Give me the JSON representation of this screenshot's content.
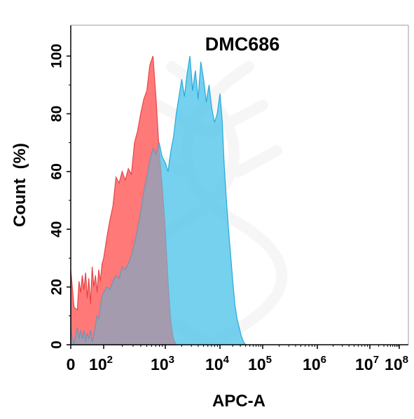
{
  "chart_data": {
    "type": "area",
    "title": "DMC686",
    "xlabel": "APC-A",
    "ylabel": "Count  (%)",
    "xscale": "biexponential-log",
    "ylim": [
      0,
      100
    ],
    "grid": false,
    "legend": "none",
    "y_ticks": [
      "0",
      "20",
      "40",
      "60",
      "80",
      "100"
    ],
    "x_ticks": [
      {
        "base": "0",
        "exp": ""
      },
      {
        "base": "10",
        "exp": "2"
      },
      {
        "base": "10",
        "exp": "3"
      },
      {
        "base": "10",
        "exp": "4"
      },
      {
        "base": "10",
        "exp": "5"
      },
      {
        "base": "10",
        "exp": "6"
      },
      {
        "base": "10",
        "exp": "7"
      },
      {
        "base": "10",
        "exp": "8"
      }
    ],
    "series": [
      {
        "color": "#ff6b6b",
        "stroke": "#e23d3d",
        "points": [
          [
            1.0,
            0
          ],
          [
            1.0,
            26
          ],
          [
            1.1,
            13
          ],
          [
            1.2,
            12
          ],
          [
            1.25,
            22
          ],
          [
            1.3,
            18
          ],
          [
            1.35,
            24
          ],
          [
            1.4,
            19
          ],
          [
            1.45,
            25
          ],
          [
            1.5,
            16
          ],
          [
            1.55,
            23
          ],
          [
            1.6,
            14
          ],
          [
            1.65,
            27
          ],
          [
            1.7,
            20
          ],
          [
            1.75,
            24
          ],
          [
            1.8,
            18
          ],
          [
            1.85,
            26
          ],
          [
            1.9,
            22
          ],
          [
            1.95,
            28
          ],
          [
            2.0,
            30
          ],
          [
            2.05,
            37
          ],
          [
            2.1,
            43
          ],
          [
            2.15,
            48
          ],
          [
            2.2,
            58
          ],
          [
            2.25,
            56
          ],
          [
            2.3,
            60
          ],
          [
            2.35,
            57
          ],
          [
            2.4,
            61
          ],
          [
            2.45,
            59
          ],
          [
            2.5,
            70
          ],
          [
            2.55,
            74
          ],
          [
            2.6,
            80
          ],
          [
            2.65,
            85
          ],
          [
            2.7,
            88
          ],
          [
            2.75,
            97
          ],
          [
            2.8,
            100
          ],
          [
            2.85,
            85
          ],
          [
            2.9,
            67
          ],
          [
            2.95,
            55
          ],
          [
            3.0,
            40
          ],
          [
            3.05,
            22
          ],
          [
            3.1,
            8
          ],
          [
            3.15,
            2
          ],
          [
            3.2,
            0
          ]
        ]
      },
      {
        "color": "#4fc4ea",
        "stroke": "#26a9dc",
        "points": [
          [
            1.0,
            0
          ],
          [
            1.0,
            6
          ],
          [
            1.05,
            2
          ],
          [
            1.1,
            0
          ],
          [
            1.15,
            3
          ],
          [
            1.2,
            6
          ],
          [
            1.25,
            2
          ],
          [
            1.3,
            5
          ],
          [
            1.35,
            2
          ],
          [
            1.4,
            5
          ],
          [
            1.45,
            1
          ],
          [
            1.5,
            4
          ],
          [
            1.55,
            2
          ],
          [
            1.6,
            5
          ],
          [
            1.65,
            1
          ],
          [
            1.7,
            3
          ],
          [
            1.75,
            7
          ],
          [
            1.8,
            10
          ],
          [
            1.85,
            9
          ],
          [
            1.9,
            13
          ],
          [
            1.95,
            17
          ],
          [
            2.0,
            18
          ],
          [
            2.05,
            20
          ],
          [
            2.1,
            19
          ],
          [
            2.15,
            22
          ],
          [
            2.2,
            24
          ],
          [
            2.25,
            23
          ],
          [
            2.3,
            27
          ],
          [
            2.35,
            26
          ],
          [
            2.4,
            28
          ],
          [
            2.45,
            31
          ],
          [
            2.5,
            35
          ],
          [
            2.55,
            40
          ],
          [
            2.6,
            46
          ],
          [
            2.65,
            53
          ],
          [
            2.7,
            58
          ],
          [
            2.75,
            64
          ],
          [
            2.8,
            68
          ],
          [
            2.85,
            66
          ],
          [
            2.9,
            70
          ],
          [
            2.95,
            65
          ],
          [
            3.0,
            63
          ],
          [
            3.05,
            60
          ],
          [
            3.1,
            67
          ],
          [
            3.15,
            72
          ],
          [
            3.2,
            80
          ],
          [
            3.25,
            86
          ],
          [
            3.3,
            92
          ],
          [
            3.35,
            86
          ],
          [
            3.4,
            94
          ],
          [
            3.45,
            100
          ],
          [
            3.5,
            88
          ],
          [
            3.55,
            95
          ],
          [
            3.6,
            85
          ],
          [
            3.65,
            98
          ],
          [
            3.7,
            92
          ],
          [
            3.75,
            84
          ],
          [
            3.8,
            90
          ],
          [
            3.85,
            82
          ],
          [
            3.9,
            77
          ],
          [
            3.95,
            80
          ],
          [
            4.0,
            87
          ],
          [
            4.05,
            78
          ],
          [
            4.1,
            62
          ],
          [
            4.15,
            50
          ],
          [
            4.2,
            40
          ],
          [
            4.25,
            31
          ],
          [
            4.3,
            22
          ],
          [
            4.35,
            14
          ],
          [
            4.4,
            9
          ],
          [
            4.45,
            6
          ],
          [
            4.5,
            3
          ],
          [
            4.55,
            1
          ],
          [
            4.6,
            0
          ]
        ]
      }
    ]
  }
}
